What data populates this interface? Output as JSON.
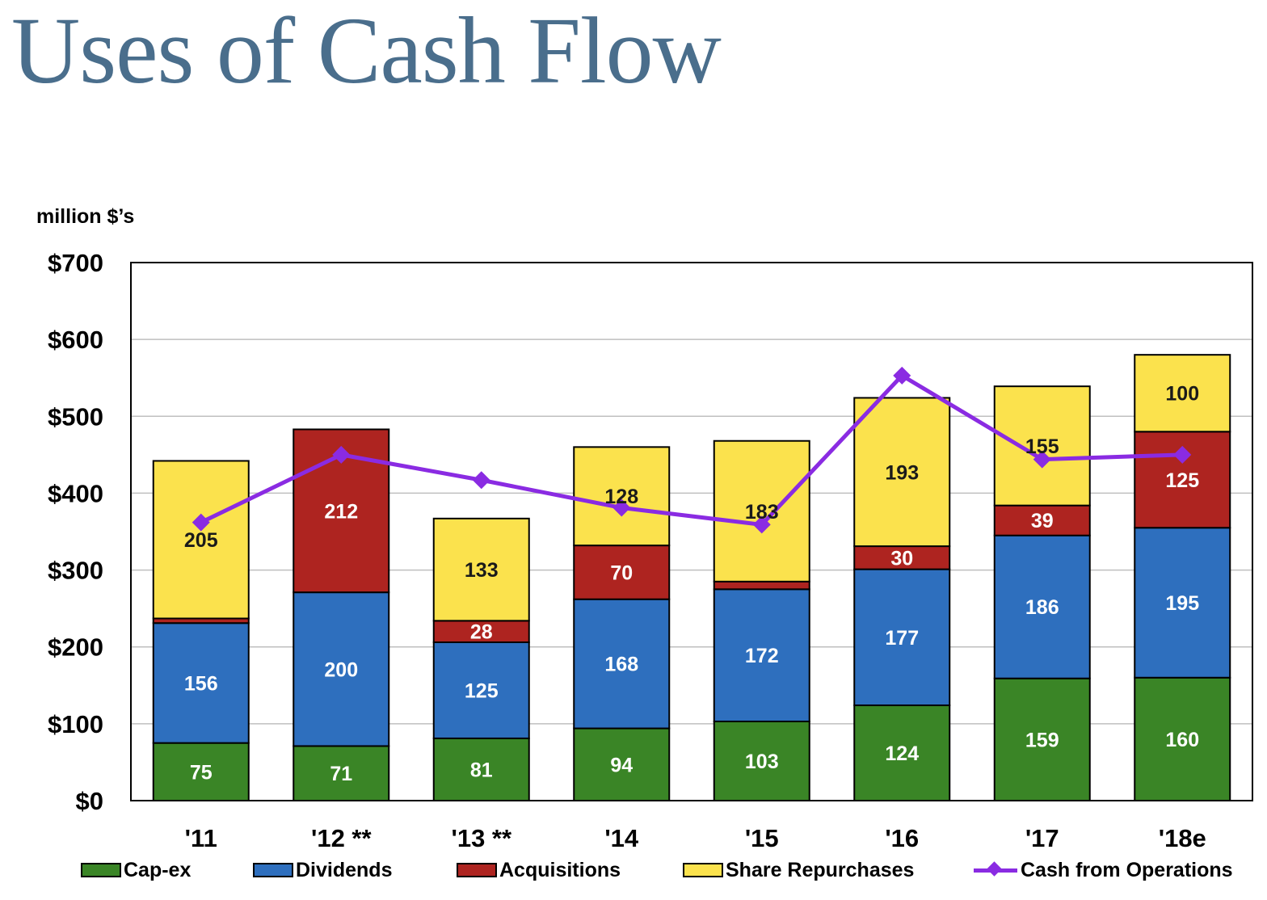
{
  "title": "Uses of Cash Flow",
  "chart_data": {
    "type": "bar",
    "stacked": true,
    "unit_label": "million $’s",
    "categories": [
      "'11",
      "'12 **",
      "'13 **",
      "'14",
      "'15",
      "'16",
      "'17",
      "'18e"
    ],
    "ylim": [
      0,
      700
    ],
    "yticks": [
      0,
      100,
      200,
      300,
      400,
      500,
      600,
      700
    ],
    "ytick_labels": [
      "$0",
      "$100",
      "$200",
      "$300",
      "$400",
      "$500",
      "$600",
      "$700"
    ],
    "grid": true,
    "legend_position": "bottom",
    "series": [
      {
        "name": "Cap-ex",
        "color": "#3a8526",
        "label_color": "#ffffff",
        "values": [
          75,
          71,
          81,
          94,
          103,
          124,
          159,
          160
        ],
        "labels": [
          "75",
          "71",
          "81",
          "94",
          "103",
          "124",
          "159",
          "160"
        ]
      },
      {
        "name": "Dividends",
        "color": "#2e6fbe",
        "label_color": "#ffffff",
        "values": [
          156,
          200,
          125,
          168,
          172,
          177,
          186,
          195
        ],
        "labels": [
          "156",
          "200",
          "125",
          "168",
          "172",
          "177",
          "186",
          "195"
        ]
      },
      {
        "name": "Acquisitions",
        "color": "#ae2420",
        "label_color": "#ffffff",
        "values": [
          6,
          212,
          28,
          70,
          10,
          30,
          39,
          125
        ],
        "labels": [
          "",
          "212",
          "28",
          "70",
          "",
          "30",
          "39",
          "125"
        ]
      },
      {
        "name": "Share Repurchases",
        "color": "#fbe24d",
        "label_color": "#1a1a1a",
        "values": [
          205,
          0,
          133,
          128,
          183,
          193,
          155,
          100
        ],
        "labels": [
          "205",
          "",
          "133",
          "128",
          "183",
          "193",
          "155",
          "100"
        ]
      }
    ],
    "line_series": {
      "name": "Cash from Operations",
      "color": "#8a2be2",
      "values": [
        362,
        450,
        417,
        381,
        359,
        553,
        444,
        450
      ]
    }
  }
}
